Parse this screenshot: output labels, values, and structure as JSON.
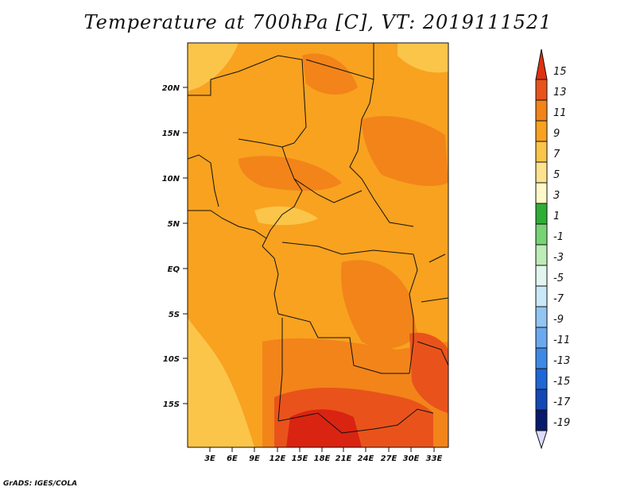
{
  "title": "Temperature at 700hPa [C], VT: 2019111521",
  "credit": "GrADS: IGES/COLA",
  "map": {
    "lat_labels": [
      "20N",
      "15N",
      "10N",
      "5N",
      "EQ",
      "5S",
      "10S",
      "15S"
    ],
    "lon_labels": [
      "3E",
      "6E",
      "9E",
      "12E",
      "15E",
      "18E",
      "21E",
      "24E",
      "27E",
      "30E",
      "33E"
    ],
    "field_colors": {
      "c7": "#FBC54A",
      "c9": "#F8A21F",
      "c11": "#F2841A",
      "c13": "#E9531B",
      "c15": "#D92412"
    }
  },
  "colorbar": {
    "labels": [
      "15",
      "13",
      "11",
      "9",
      "7",
      "5",
      "3",
      "1",
      "-1",
      "-3",
      "-5",
      "-7",
      "-9",
      "-11",
      "-13",
      "-15",
      "-17",
      "-19"
    ],
    "colors": [
      "#E0310F",
      "#E9531B",
      "#F2841A",
      "#F8A21F",
      "#FBC54A",
      "#FDE38E",
      "#FFF8C8",
      "#2FAE36",
      "#76D473",
      "#BDECB7",
      "#E2F6EF",
      "#C9E8F8",
      "#93C5F2",
      "#6BA9EE",
      "#3E89E6",
      "#1F67D7",
      "#1249B4",
      "#081A6C",
      "#DCDCFF"
    ]
  }
}
